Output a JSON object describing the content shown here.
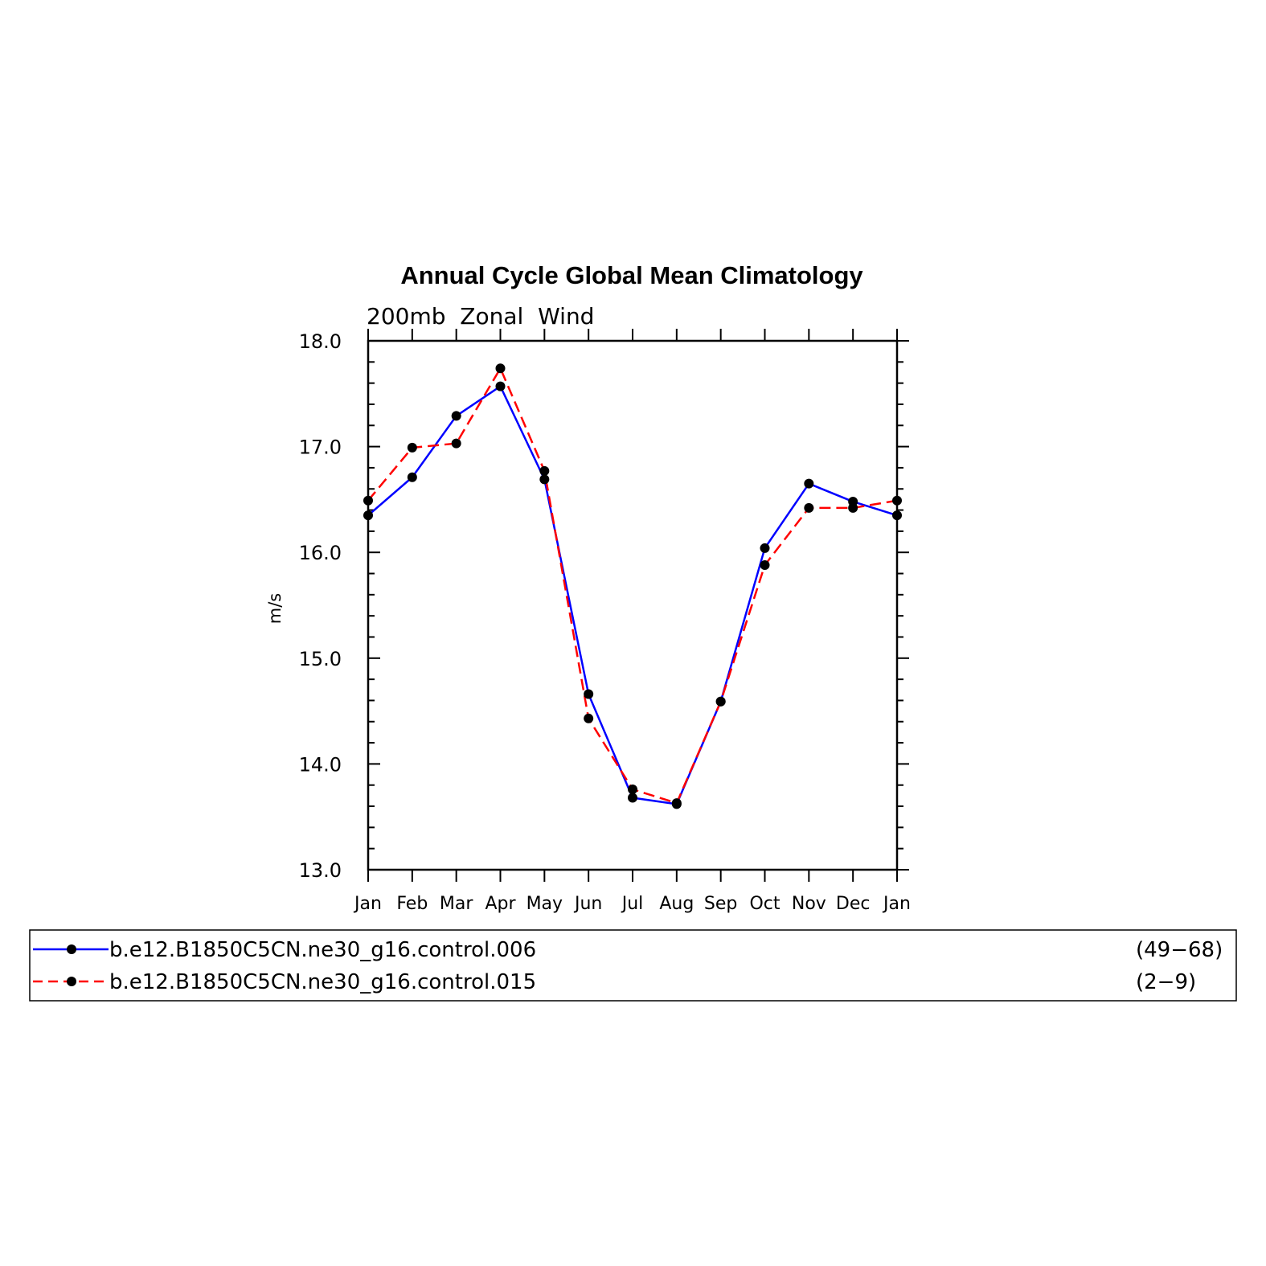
{
  "chart_data": {
    "type": "line",
    "title": "Annual Cycle Global Mean Climatology",
    "subtitle": "200mb  Zonal  Wind",
    "ylabel": "m/s",
    "xlabel": "",
    "categories": [
      "Jan",
      "Feb",
      "Mar",
      "Apr",
      "May",
      "Jun",
      "Jul",
      "Aug",
      "Sep",
      "Oct",
      "Nov",
      "Dec",
      "Jan"
    ],
    "ylim": [
      13.0,
      18.0
    ],
    "yticks": [
      "13.0",
      "14.0",
      "15.0",
      "16.0",
      "17.0",
      "18.0"
    ],
    "grid": false,
    "series": [
      {
        "name": "b.e12.B1850C5CN.ne30_g16.control.006",
        "years": "(49−68)",
        "color": "#0000ff",
        "dash": "solid",
        "values": [
          16.35,
          16.71,
          17.29,
          17.57,
          16.69,
          14.66,
          13.68,
          13.62,
          14.59,
          16.04,
          16.65,
          16.48,
          16.35
        ]
      },
      {
        "name": "b.e12.B1850C5CN.ne30_g16.control.015",
        "years": "(2−9)",
        "color": "#ff0000",
        "dash": "dashed",
        "values": [
          16.49,
          16.99,
          17.03,
          17.74,
          16.77,
          14.43,
          13.76,
          13.63,
          14.59,
          15.88,
          16.42,
          16.42,
          16.49
        ]
      }
    ],
    "legend_position": "bottom"
  }
}
